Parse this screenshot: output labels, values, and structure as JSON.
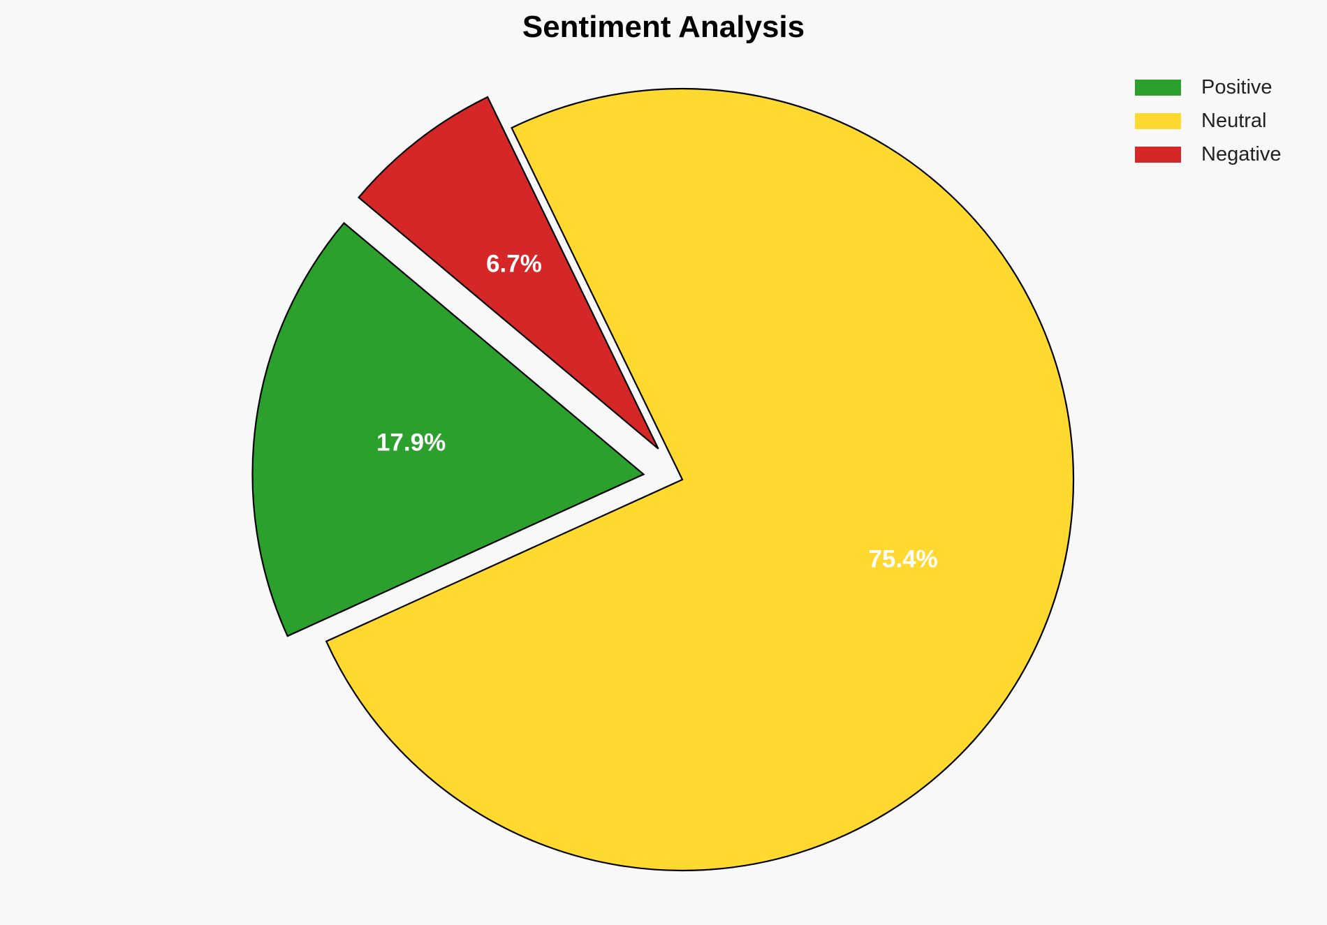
{
  "chart_data": {
    "type": "pie",
    "title": "Sentiment Analysis",
    "categories": [
      "Positive",
      "Neutral",
      "Negative"
    ],
    "values": [
      17.9,
      75.4,
      6.7
    ],
    "labels": [
      "17.9%",
      "75.4%",
      "6.7%"
    ],
    "colors": [
      "#2ca02c",
      "#ffd92f",
      "#d62728"
    ],
    "explode": [
      0.1,
      0,
      0.1
    ],
    "start_angle": 140,
    "legend_position": "top-right"
  }
}
